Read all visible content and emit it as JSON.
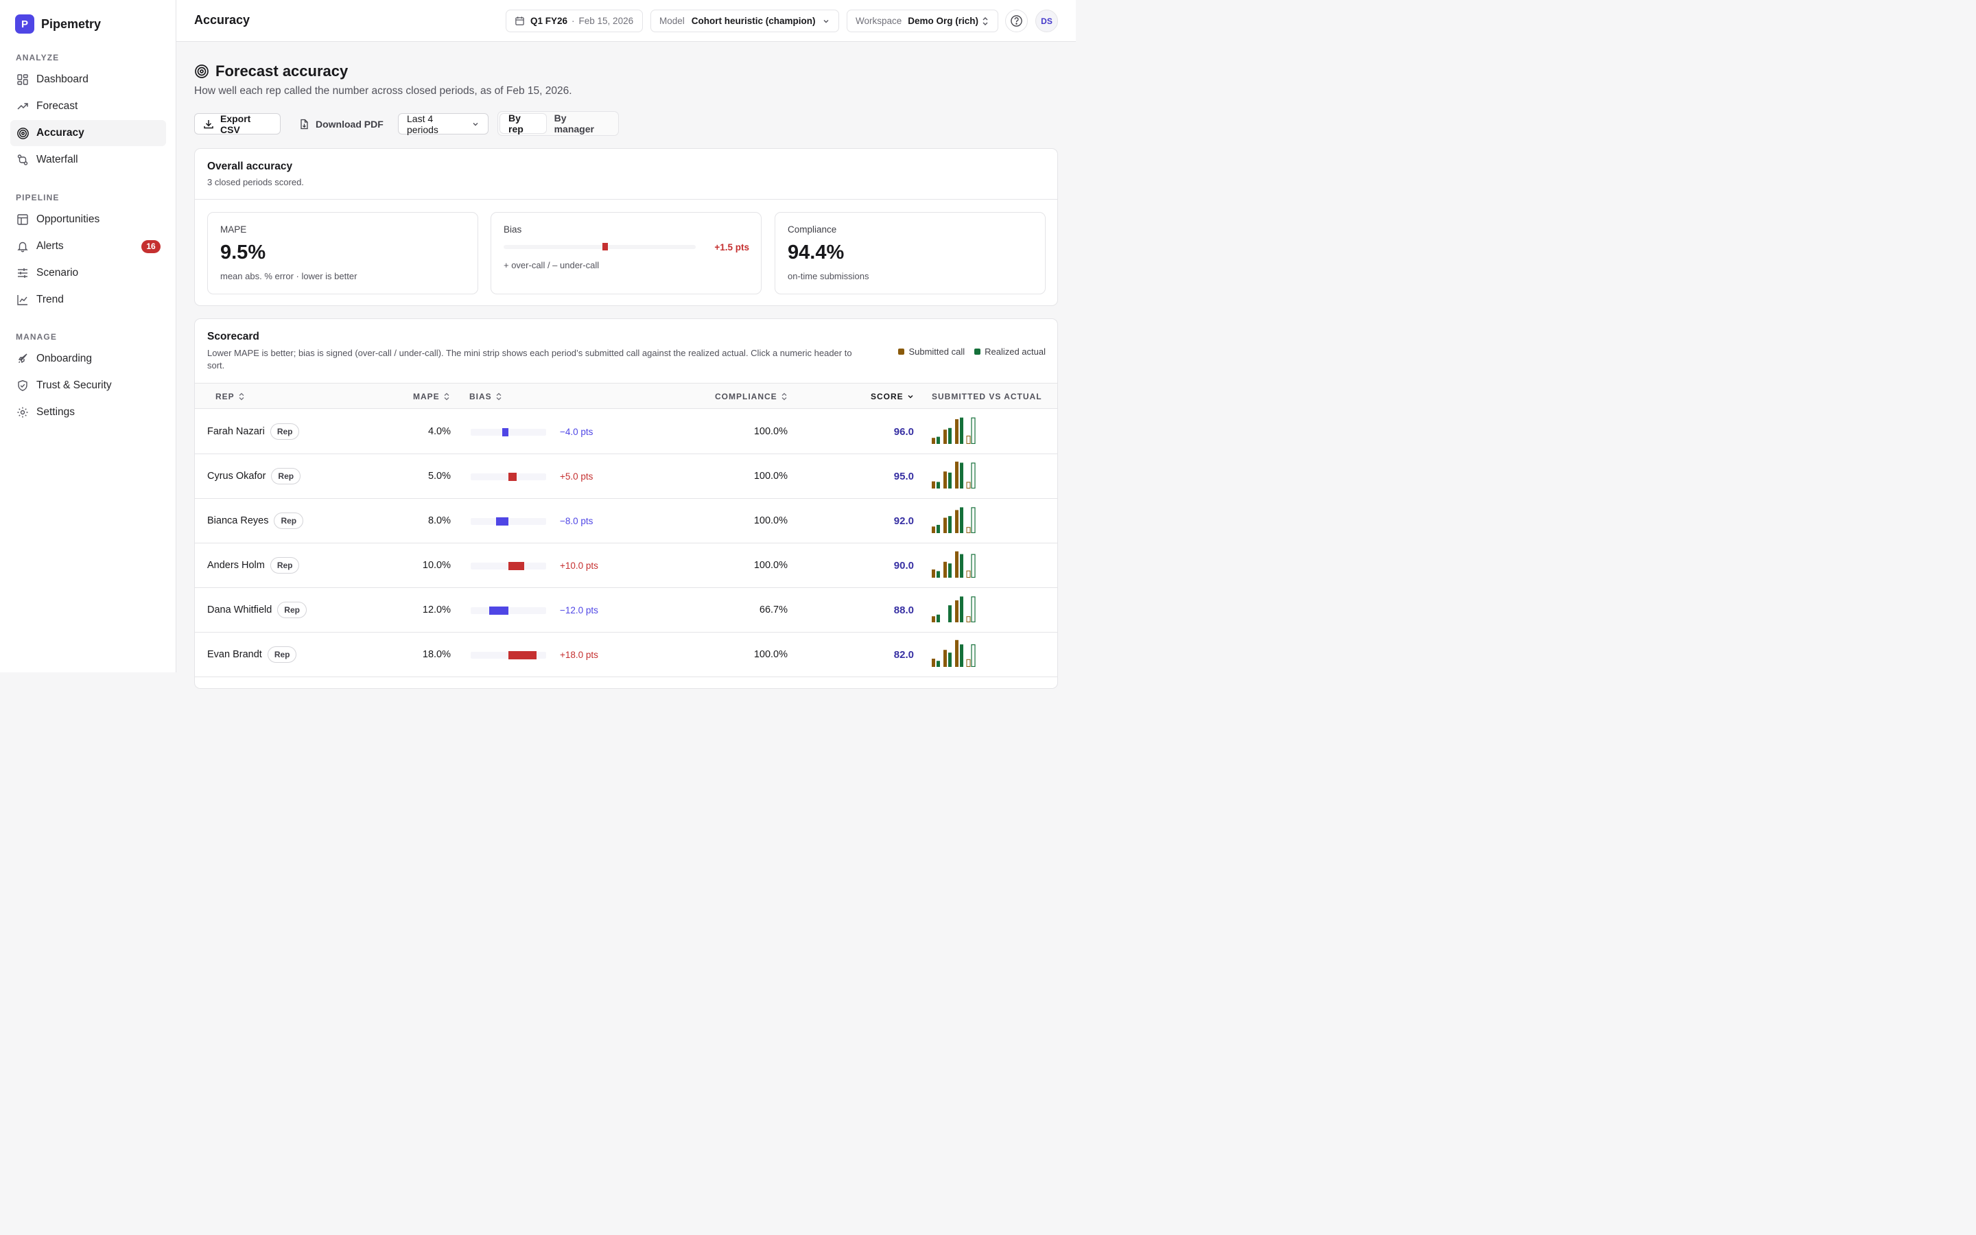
{
  "app": {
    "name": "Pipemetry",
    "logo_letter": "P"
  },
  "sidebar": {
    "sections": [
      {
        "heading": "ANALYZE",
        "items": [
          {
            "label": "Dashboard",
            "icon": "dashboard-icon"
          },
          {
            "label": "Forecast",
            "icon": "trending-up-icon"
          },
          {
            "label": "Accuracy",
            "icon": "target-icon",
            "active": true
          },
          {
            "label": "Waterfall",
            "icon": "waterfall-icon"
          }
        ]
      },
      {
        "heading": "PIPELINE",
        "items": [
          {
            "label": "Opportunities",
            "icon": "table-icon"
          },
          {
            "label": "Alerts",
            "icon": "bell-icon",
            "badge": "16"
          },
          {
            "label": "Scenario",
            "icon": "sliders-icon"
          },
          {
            "label": "Trend",
            "icon": "line-chart-icon"
          }
        ]
      },
      {
        "heading": "MANAGE",
        "items": [
          {
            "label": "Onboarding",
            "icon": "rocket-icon"
          },
          {
            "label": "Trust & Security",
            "icon": "shield-icon"
          },
          {
            "label": "Settings",
            "icon": "gear-icon"
          }
        ]
      }
    ]
  },
  "topbar": {
    "title": "Accuracy",
    "period": {
      "quarter": "Q1 FY26",
      "separator": "·",
      "date": "Feb 15, 2026"
    },
    "model": {
      "label": "Model",
      "value": "Cohort heuristic (champion)"
    },
    "workspace": {
      "label": "Workspace",
      "value": "Demo Org (rich)"
    },
    "avatar_initials": "DS"
  },
  "header": {
    "title": "Forecast accuracy",
    "subtitle": "How well each rep called the number across closed periods, as of Feb 15, 2026."
  },
  "toolbar": {
    "export_label": "Export CSV",
    "download_label": "Download PDF",
    "period_select": "Last 4 periods",
    "segments": [
      "By rep",
      "By manager"
    ],
    "active_segment": 0
  },
  "overall": {
    "title": "Overall accuracy",
    "subtitle": "3 closed periods scored.",
    "mape": {
      "label": "MAPE",
      "value": "9.5%",
      "note": "mean abs. % error · lower is better"
    },
    "bias": {
      "label": "Bias",
      "value_pts": "+1.5 pts",
      "value": 1.5,
      "note": "+ over-call / – under-call"
    },
    "compliance": {
      "label": "Compliance",
      "value": "94.4%",
      "note": "on-time submissions"
    }
  },
  "scorecard": {
    "title": "Scorecard",
    "subtitle": "Lower MAPE is better; bias is signed (over-call / under-call). The mini strip shows each period’s submitted call against the realized actual. Click a numeric header to sort.",
    "legend": {
      "submitted": "Submitted call",
      "actual": "Realized actual"
    },
    "colors": {
      "submitted": "#8a5a0b",
      "actual": "#15703a",
      "over": "#c53030",
      "under": "#4f46e5",
      "score": "#3730a3"
    },
    "columns": {
      "rep": "REP",
      "mape": "MAPE",
      "bias": "BIAS",
      "compliance": "COMPLIANCE",
      "score": "SCORE",
      "spark": "SUBMITTED VS ACTUAL"
    },
    "rows": [
      {
        "name": "Farah Nazari",
        "role": "Rep",
        "mape": "4.0%",
        "bias": -4.0,
        "bias_text": "−4.0 pts",
        "compliance": "100.0%",
        "score": "96.0",
        "spark": [
          [
            0.22,
            0.26
          ],
          [
            0.52,
            0.58
          ],
          [
            0.9,
            0.96
          ],
          [
            0.3,
            0.96
          ]
        ]
      },
      {
        "name": "Cyrus Okafor",
        "role": "Rep",
        "mape": "5.0%",
        "bias": 5.0,
        "bias_text": "+5.0 pts",
        "compliance": "100.0%",
        "score": "95.0",
        "spark": [
          [
            0.26,
            0.24
          ],
          [
            0.62,
            0.58
          ],
          [
            0.98,
            0.94
          ],
          [
            0.24,
            0.94
          ]
        ]
      },
      {
        "name": "Bianca Reyes",
        "role": "Rep",
        "mape": "8.0%",
        "bias": -8.0,
        "bias_text": "−8.0 pts",
        "compliance": "100.0%",
        "score": "92.0",
        "spark": [
          [
            0.24,
            0.3
          ],
          [
            0.56,
            0.62
          ],
          [
            0.84,
            0.94
          ],
          [
            0.22,
            0.94
          ]
        ]
      },
      {
        "name": "Anders Holm",
        "role": "Rep",
        "mape": "10.0%",
        "bias": 10.0,
        "bias_text": "+10.0 pts",
        "compliance": "100.0%",
        "score": "90.0",
        "spark": [
          [
            0.3,
            0.24
          ],
          [
            0.58,
            0.52
          ],
          [
            0.96,
            0.86
          ],
          [
            0.26,
            0.86
          ]
        ]
      },
      {
        "name": "Dana Whitfield",
        "role": "Rep",
        "mape": "12.0%",
        "bias": -12.0,
        "bias_text": "−12.0 pts",
        "compliance": "66.7%",
        "score": "88.0",
        "spark": [
          [
            0.22,
            0.28
          ],
          [
            0.0,
            0.62
          ],
          [
            0.8,
            0.94
          ],
          [
            0.22,
            0.94
          ]
        ]
      },
      {
        "name": "Evan Brandt",
        "role": "Rep",
        "mape": "18.0%",
        "bias": 18.0,
        "bias_text": "+18.0 pts",
        "compliance": "100.0%",
        "score": "82.0",
        "spark": [
          [
            0.3,
            0.22
          ],
          [
            0.62,
            0.52
          ],
          [
            0.98,
            0.82
          ],
          [
            0.28,
            0.82
          ]
        ]
      }
    ]
  }
}
